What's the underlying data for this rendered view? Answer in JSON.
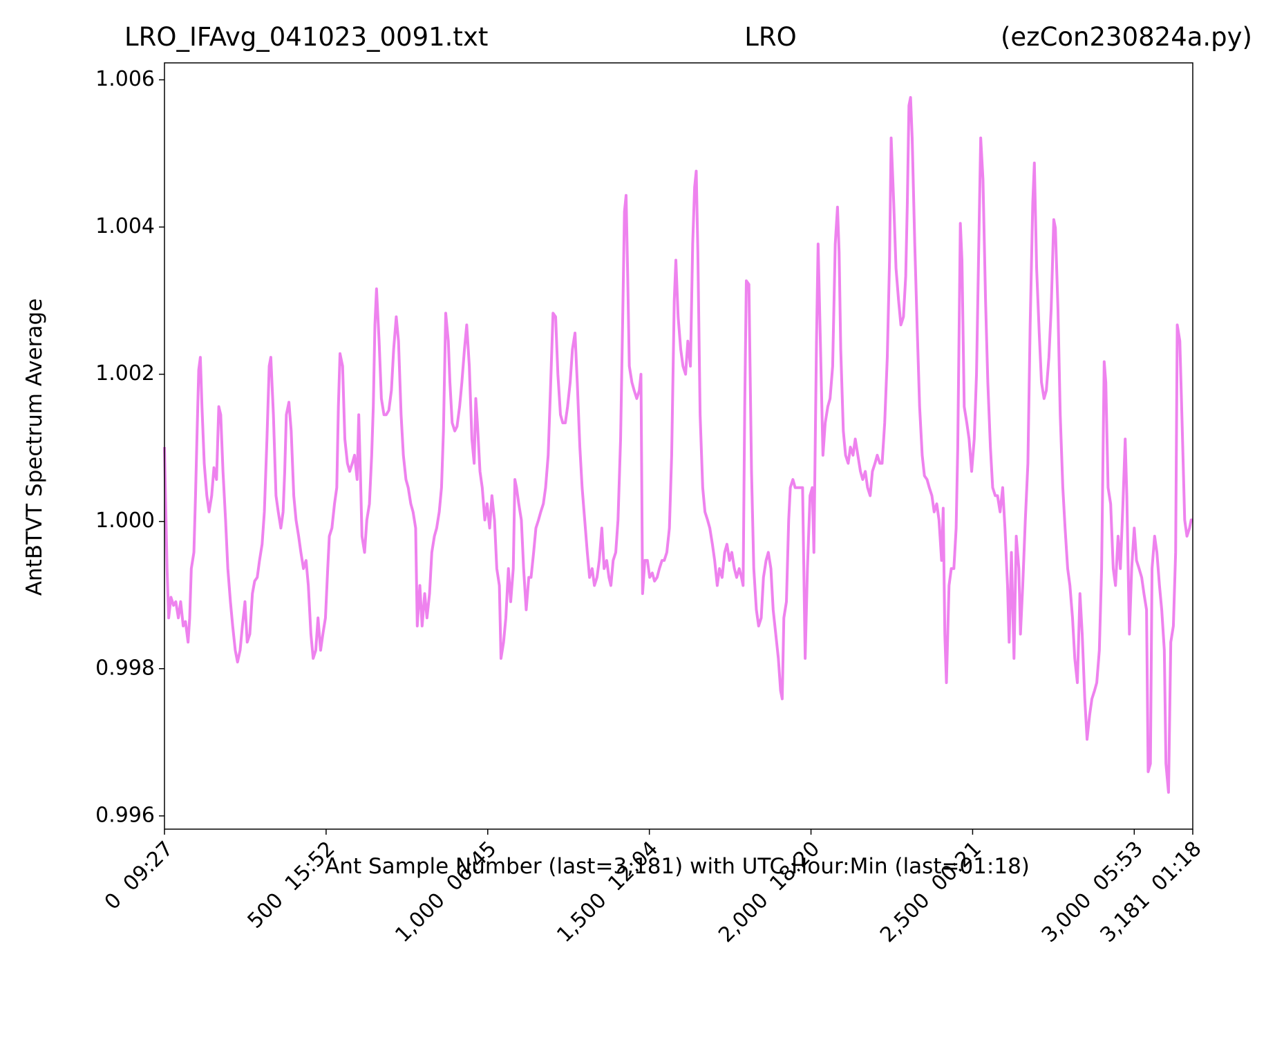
{
  "chart_data": {
    "type": "line",
    "title": [
      "LRO_IFAvg_041023_0091.txt",
      "LRO",
      "(ezCon230824a.py)"
    ],
    "xlabel": "Ant Sample Number (last=3,181) with UTC Hour:Min (last=01:18)",
    "ylabel": "AntBTVT Spectrum Average",
    "color": "#ee82ee",
    "xlim": [
      0,
      3181
    ],
    "ylim": [
      0.99582,
      1.00623
    ],
    "xticks": [
      {
        "value": 0,
        "label": "0  09:27"
      },
      {
        "value": 500,
        "label": "500  15:52"
      },
      {
        "value": 1000,
        "label": "1,000  06:45"
      },
      {
        "value": 1500,
        "label": "1,500  12:04"
      },
      {
        "value": 2000,
        "label": "2,000  18:20"
      },
      {
        "value": 2500,
        "label": "2,500  00:21"
      },
      {
        "value": 3000,
        "label": "3,000  05:53"
      },
      {
        "value": 3181,
        "label": "3,181  01:18"
      }
    ],
    "yticks": [
      0.996,
      0.998,
      {
        "value": 1,
        "label": "1.000"
      },
      1.002,
      1.004,
      1.006
    ],
    "x": [
      0,
      8,
      13,
      20,
      28,
      35,
      43,
      50,
      58,
      65,
      73,
      78,
      83,
      91,
      96,
      101,
      106,
      111,
      116,
      123,
      131,
      138,
      146,
      153,
      161,
      168,
      174,
      181,
      189,
      196,
      204,
      211,
      219,
      226,
      234,
      241,
      249,
      256,
      264,
      272,
      279,
      287,
      294,
      302,
      309,
      317,
      324,
      329,
      337,
      345,
      352,
      360,
      367,
      372,
      377,
      385,
      392,
      400,
      407,
      415,
      422,
      430,
      438,
      445,
      453,
      460,
      468,
      475,
      483,
      490,
      498,
      505,
      510,
      518,
      526,
      533,
      538,
      543,
      551,
      558,
      566,
      573,
      581,
      588,
      596,
      601,
      606,
      611,
      619,
      626,
      634,
      641,
      646,
      651,
      656,
      664,
      671,
      679,
      686,
      694,
      702,
      709,
      717,
      724,
      732,
      739,
      747,
      754,
      762,
      769,
      777,
      782,
      790,
      797,
      805,
      812,
      820,
      827,
      835,
      842,
      850,
      857,
      863,
      870,
      878,
      883,
      890,
      898,
      905,
      913,
      920,
      928,
      935,
      943,
      951,
      958,
      963,
      968,
      976,
      983,
      991,
      998,
      1006,
      1013,
      1021,
      1028,
      1036,
      1041,
      1049,
      1056,
      1064,
      1071,
      1079,
      1084,
      1089,
      1096,
      1104,
      1111,
      1119,
      1127,
      1134,
      1142,
      1149,
      1157,
      1164,
      1172,
      1179,
      1187,
      1194,
      1202,
      1210,
      1217,
      1225,
      1232,
      1240,
      1247,
      1255,
      1262,
      1270,
      1277,
      1285,
      1292,
      1300,
      1308,
      1315,
      1323,
      1330,
      1338,
      1345,
      1353,
      1360,
      1368,
      1375,
      1381,
      1388,
      1396,
      1403,
      1411,
      1418,
      1423,
      1428,
      1433,
      1438,
      1446,
      1453,
      1461,
      1469,
      1474,
      1479,
      1486,
      1494,
      1501,
      1509,
      1516,
      1524,
      1531,
      1539,
      1546,
      1554,
      1562,
      1569,
      1577,
      1582,
      1589,
      1597,
      1604,
      1612,
      1619,
      1627,
      1634,
      1640,
      1645,
      1650,
      1657,
      1665,
      1672,
      1680,
      1687,
      1695,
      1702,
      1710,
      1717,
      1725,
      1733,
      1740,
      1748,
      1755,
      1763,
      1770,
      1778,
      1785,
      1790,
      1795,
      1800,
      1808,
      1816,
      1823,
      1831,
      1838,
      1846,
      1853,
      1861,
      1868,
      1876,
      1883,
      1891,
      1899,
      1906,
      1911,
      1916,
      1924,
      1931,
      1936,
      1944,
      1951,
      1959,
      1966,
      1974,
      1982,
      1989,
      1997,
      2004,
      2009,
      2017,
      2022,
      2029,
      2037,
      2044,
      2052,
      2059,
      2067,
      2075,
      2082,
      2087,
      2092,
      2100,
      2107,
      2115,
      2122,
      2130,
      2137,
      2145,
      2153,
      2160,
      2168,
      2175,
      2183,
      2190,
      2198,
      2205,
      2213,
      2220,
      2228,
      2236,
      2243,
      2248,
      2256,
      2263,
      2271,
      2278,
      2286,
      2293,
      2298,
      2303,
      2308,
      2313,
      2321,
      2329,
      2336,
      2344,
      2351,
      2359,
      2366,
      2374,
      2381,
      2389,
      2396,
      2404,
      2409,
      2414,
      2419,
      2427,
      2434,
      2442,
      2449,
      2454,
      2462,
      2467,
      2474,
      2482,
      2489,
      2497,
      2505,
      2512,
      2520,
      2525,
      2532,
      2540,
      2547,
      2555,
      2562,
      2570,
      2577,
      2585,
      2593,
      2600,
      2608,
      2613,
      2620,
      2628,
      2635,
      2643,
      2648,
      2655,
      2663,
      2671,
      2678,
      2686,
      2691,
      2698,
      2706,
      2713,
      2721,
      2728,
      2736,
      2743,
      2751,
      2756,
      2764,
      2771,
      2779,
      2786,
      2794,
      2801,
      2809,
      2816,
      2824,
      2832,
      2839,
      2847,
      2854,
      2862,
      2869,
      2877,
      2884,
      2892,
      2899,
      2907,
      2912,
      2919,
      2927,
      2935,
      2942,
      2950,
      2957,
      2965,
      2972,
      2977,
      2985,
      2992,
      3000,
      3007,
      3015,
      3023,
      3030,
      3038,
      3043,
      3050,
      3055,
      3063,
      3070,
      3078,
      3085,
      3093,
      3098,
      3106,
      3113,
      3121,
      3128,
      3133,
      3141,
      3148,
      3156,
      3163,
      3171,
      3176,
      3181
    ],
    "values": [
      1.00101,
      0.99936,
      0.99869,
      0.99897,
      0.99886,
      0.99891,
      0.99869,
      0.99891,
      0.99858,
      0.99864,
      0.99836,
      0.99869,
      0.99936,
      0.99958,
      1.00035,
      1.00123,
      1.00206,
      1.00223,
      1.00156,
      1.00079,
      1.00035,
      1.00013,
      1.00035,
      1.00073,
      1.00057,
      1.00156,
      1.00145,
      1.00068,
      1.00002,
      0.99936,
      0.99891,
      0.99858,
      0.99825,
      0.99809,
      0.99825,
      0.99858,
      0.99891,
      0.99836,
      0.99847,
      0.99902,
      0.99919,
      0.99924,
      0.99947,
      0.99969,
      1.00013,
      1.00112,
      1.00211,
      1.00223,
      1.00145,
      1.00035,
      1.00013,
      0.99991,
      1.00013,
      1.00068,
      1.00145,
      1.00162,
      1.00123,
      1.00035,
      1.00002,
      0.9998,
      0.99958,
      0.99936,
      0.99947,
      0.99913,
      0.99847,
      0.99814,
      0.99825,
      0.99869,
      0.99825,
      0.99847,
      0.99869,
      0.99936,
      0.9998,
      0.99991,
      1.00024,
      1.00046,
      1.00156,
      1.00228,
      1.00211,
      1.00112,
      1.00079,
      1.00068,
      1.00079,
      1.0009,
      1.00057,
      1.00145,
      1.00068,
      0.9998,
      0.99958,
      1.00002,
      1.00024,
      1.0009,
      1.00156,
      1.00267,
      1.00316,
      1.00245,
      1.00167,
      1.00145,
      1.00145,
      1.00151,
      1.00178,
      1.00234,
      1.00278,
      1.00245,
      1.00145,
      1.0009,
      1.00057,
      1.00046,
      1.00024,
      1.00013,
      0.99991,
      0.99858,
      0.99913,
      0.99858,
      0.99902,
      0.99869,
      0.99902,
      0.99958,
      0.9998,
      0.99991,
      1.00013,
      1.00046,
      1.00123,
      1.00283,
      1.00245,
      1.00189,
      1.00134,
      1.00123,
      1.00129,
      1.00156,
      1.00189,
      1.00234,
      1.00267,
      1.00211,
      1.00112,
      1.00079,
      1.00167,
      1.00134,
      1.00068,
      1.00046,
      1.00002,
      1.00024,
      0.99991,
      1.00035,
      1.00002,
      0.99936,
      0.99913,
      0.99814,
      0.99836,
      0.99869,
      0.99936,
      0.99891,
      0.99936,
      1.00057,
      1.00046,
      1.00024,
      1.00002,
      0.99936,
      0.9988,
      0.99924,
      0.99924,
      0.99958,
      0.99991,
      1.00002,
      1.00013,
      1.00024,
      1.00046,
      1.0009,
      1.00178,
      1.00283,
      1.00278,
      1.002,
      1.00145,
      1.00134,
      1.00134,
      1.00156,
      1.00189,
      1.00234,
      1.00256,
      1.00189,
      1.00101,
      1.00046,
      1.00002,
      0.99958,
      0.99924,
      0.99936,
      0.99913,
      0.99924,
      0.99947,
      0.99991,
      0.99936,
      0.99947,
      0.99924,
      0.99913,
      0.99947,
      0.99958,
      1.00002,
      1.00112,
      1.00289,
      1.00421,
      1.00443,
      1.00333,
      1.00211,
      1.00189,
      1.00178,
      1.00167,
      1.00178,
      1.002,
      0.99902,
      0.99947,
      0.99947,
      0.99924,
      0.9993,
      0.99919,
      0.99924,
      0.99936,
      0.99947,
      0.99947,
      0.99958,
      0.99991,
      1.0009,
      1.003,
      1.00355,
      1.00278,
      1.00234,
      1.00211,
      1.002,
      1.00245,
      1.00211,
      1.00377,
      1.00454,
      1.00476,
      1.00366,
      1.00145,
      1.00046,
      1.00013,
      1.00002,
      0.99991,
      0.99969,
      0.99947,
      0.99913,
      0.99936,
      0.99924,
      0.99958,
      0.99969,
      0.99947,
      0.99958,
      0.99936,
      0.99924,
      0.99936,
      0.99924,
      0.99913,
      1.00156,
      1.00327,
      1.00322,
      1.00068,
      0.99936,
      0.9988,
      0.99858,
      0.99869,
      0.99924,
      0.99947,
      0.99958,
      0.99936,
      0.9988,
      0.99847,
      0.99814,
      0.9977,
      0.99759,
      0.99869,
      0.99891,
      1.00002,
      1.00046,
      1.00057,
      1.00046,
      1.00046,
      1.00046,
      1.00046,
      0.99814,
      0.99936,
      1.00035,
      1.00046,
      0.99958,
      1.00245,
      1.00377,
      1.00245,
      1.0009,
      1.00134,
      1.00156,
      1.00167,
      1.00211,
      1.00377,
      1.00427,
      1.00366,
      1.00234,
      1.00123,
      1.0009,
      1.00079,
      1.00101,
      1.0009,
      1.00112,
      1.0009,
      1.00068,
      1.00057,
      1.00068,
      1.00046,
      1.00035,
      1.00068,
      1.00079,
      1.0009,
      1.00079,
      1.00079,
      1.00134,
      1.00223,
      1.00355,
      1.00521,
      1.00432,
      1.00344,
      1.003,
      1.00267,
      1.00278,
      1.00333,
      1.00432,
      1.00565,
      1.00576,
      1.00521,
      1.00377,
      1.00256,
      1.00156,
      1.0009,
      1.00062,
      1.00057,
      1.00046,
      1.00035,
      1.00013,
      1.00024,
      1.00002,
      0.99947,
      1.00018,
      0.99847,
      0.99781,
      0.99913,
      0.99936,
      0.99936,
      0.99991,
      1.00101,
      1.00405,
      1.00355,
      1.00156,
      1.00134,
      1.00112,
      1.00068,
      1.00112,
      1.002,
      1.00399,
      1.00521,
      1.00465,
      1.003,
      1.00189,
      1.00101,
      1.00046,
      1.00035,
      1.00035,
      1.00013,
      1.00046,
      0.99991,
      0.99913,
      0.99836,
      0.99958,
      0.99814,
      0.9998,
      0.99936,
      0.99847,
      0.99913,
      1.00002,
      1.00079,
      1.00267,
      1.00432,
      1.00487,
      1.00344,
      1.00256,
      1.00189,
      1.00167,
      1.00178,
      1.00223,
      1.00289,
      1.0041,
      1.00399,
      1.00289,
      1.00145,
      1.00046,
      0.99991,
      0.99936,
      0.99913,
      0.99869,
      0.99814,
      0.99781,
      0.99902,
      0.99847,
      0.99759,
      0.99704,
      0.99737,
      0.99759,
      0.9977,
      0.99781,
      0.99825,
      0.99936,
      1.00217,
      1.00189,
      1.00046,
      1.00024,
      0.99936,
      0.99913,
      0.9998,
      0.99936,
      1.00024,
      1.00112,
      1.00035,
      0.99847,
      0.99936,
      0.99991,
      0.99947,
      0.99936,
      0.99924,
      0.99902,
      0.9988,
      0.9966,
      0.99671,
      0.99936,
      0.9998,
      0.99958,
      0.99913,
      0.9988,
      0.99825,
      0.99671,
      0.99632,
      0.99836,
      0.99858,
      0.99958,
      1.00267,
      1.00245,
      1.00134,
      1.00002,
      0.9998,
      0.99991,
      1.00002,
      1.00002
    ]
  }
}
